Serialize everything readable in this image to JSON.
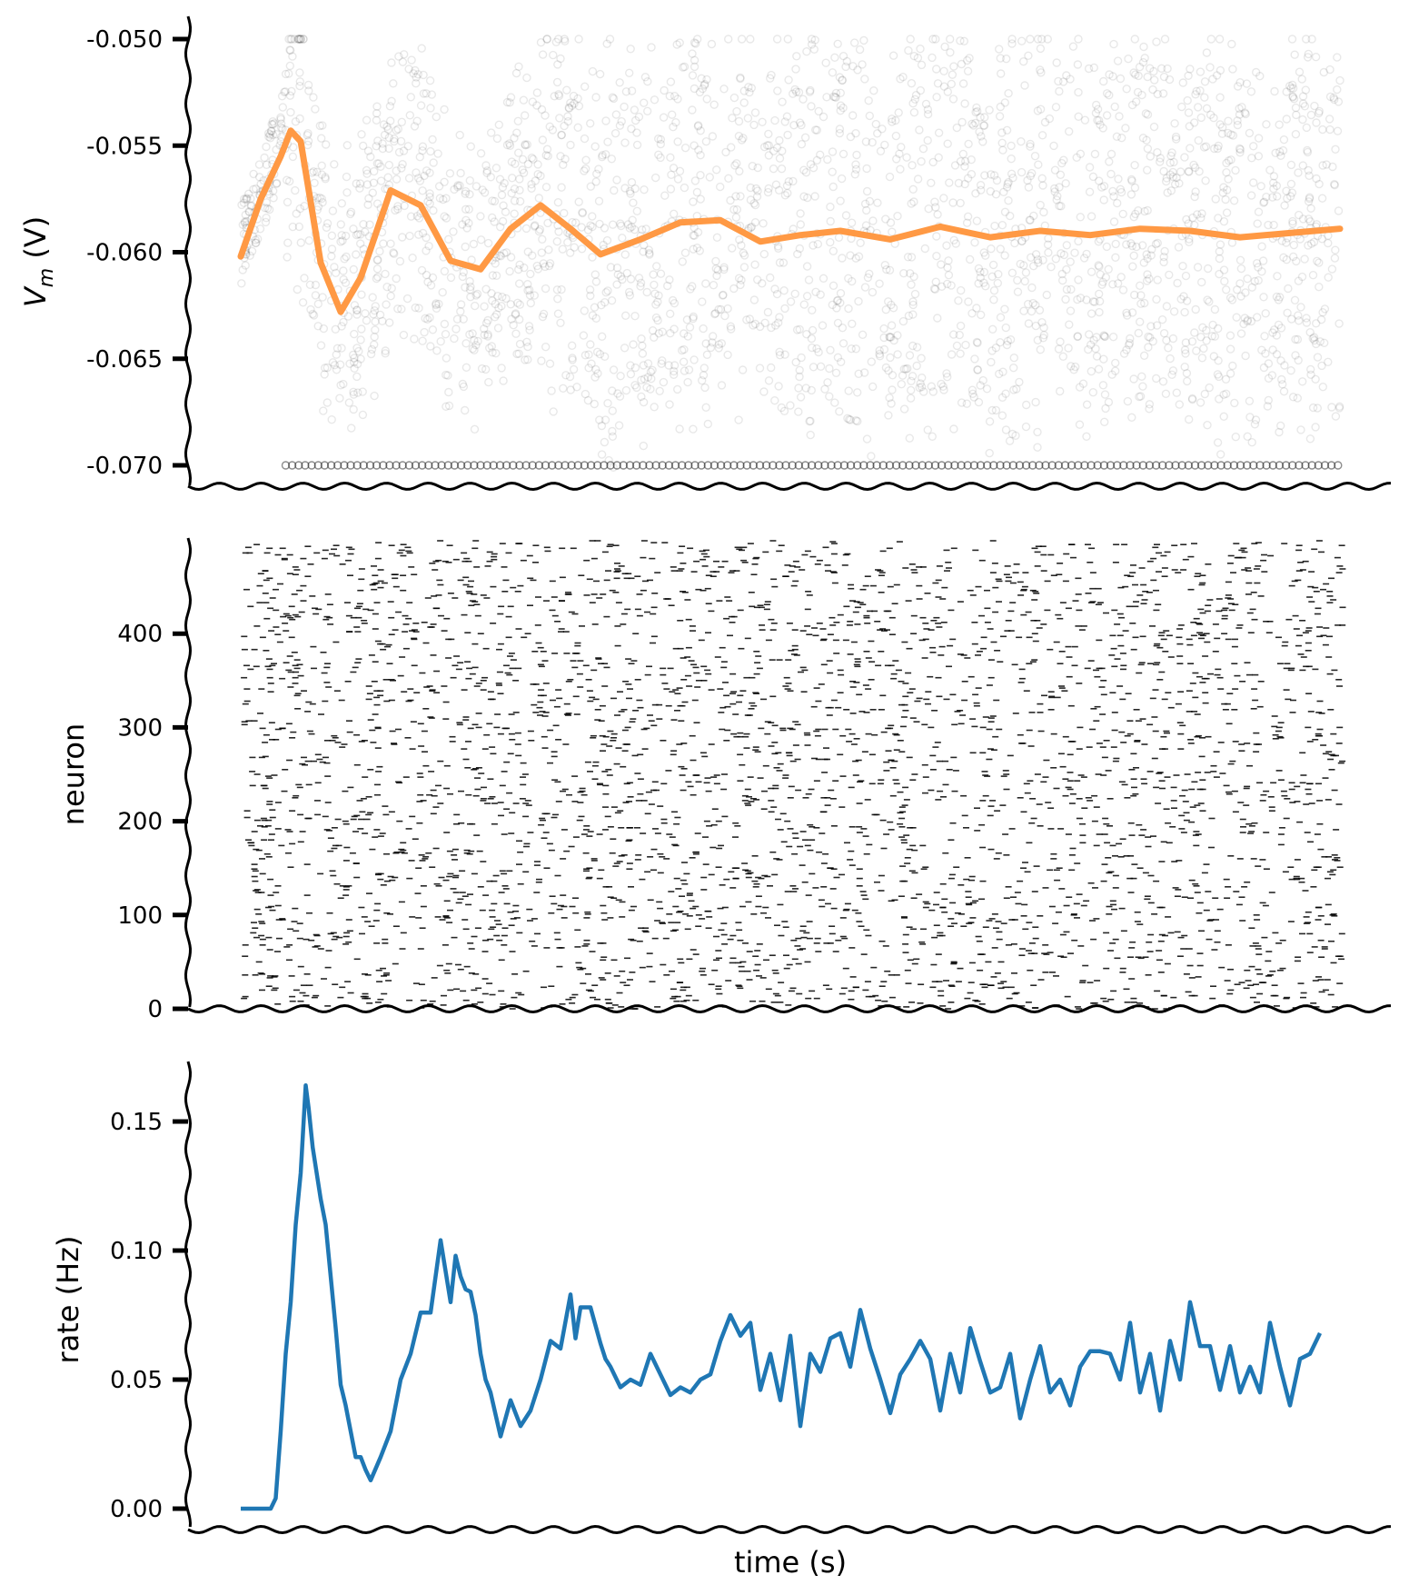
{
  "chart_data": [
    {
      "type": "scatter",
      "ylabel_main": "V",
      "ylabel_sub": "m",
      "ylabel_unit": " (V)",
      "xlabel": "",
      "ylim": [
        -0.0705,
        -0.0495
      ],
      "x_range": [
        0,
        1.1
      ],
      "y_ticks": [
        "-0.050",
        "-0.055",
        "-0.060",
        "-0.065",
        "-0.070"
      ],
      "y_tick_values": [
        -0.05,
        -0.055,
        -0.06,
        -0.065,
        -0.07
      ],
      "series": [
        {
          "color": "#ff9944",
          "x": [
            0.0,
            0.02,
            0.04,
            0.05,
            0.06,
            0.08,
            0.1,
            0.12,
            0.15,
            0.18,
            0.21,
            0.24,
            0.27,
            0.3,
            0.33,
            0.36,
            0.4,
            0.44,
            0.48,
            0.52,
            0.56,
            0.6,
            0.65,
            0.7,
            0.75,
            0.8,
            0.85,
            0.9,
            0.95,
            1.0,
            1.05,
            1.1
          ],
          "y": [
            -0.0602,
            -0.0575,
            -0.0555,
            -0.0543,
            -0.0548,
            -0.0605,
            -0.0628,
            -0.0612,
            -0.0571,
            -0.0578,
            -0.0604,
            -0.0608,
            -0.0589,
            -0.0578,
            -0.0589,
            -0.0601,
            -0.0594,
            -0.0586,
            -0.0585,
            -0.0595,
            -0.0592,
            -0.059,
            -0.0594,
            -0.0588,
            -0.0593,
            -0.059,
            -0.0592,
            -0.0589,
            -0.059,
            -0.0593,
            -0.0591,
            -0.0589
          ]
        }
      ]
    },
    {
      "type": "scatter",
      "ylabel": "neuron",
      "xlabel": "",
      "ylim": [
        0,
        500
      ],
      "x_range": [
        0,
        1.1
      ],
      "y_ticks": [
        "0",
        "100",
        "200",
        "300",
        "400"
      ],
      "y_tick_values": [
        0,
        100,
        200,
        300,
        400
      ],
      "neuron_count": 500
    },
    {
      "type": "line",
      "ylabel": "rate (Hz)",
      "xlabel": "time (s)",
      "ylim": [
        -0.006,
        0.172
      ],
      "x_range": [
        0,
        1.1
      ],
      "y_ticks": [
        "0.00",
        "0.05",
        "0.10",
        "0.15"
      ],
      "y_tick_values": [
        0.0,
        0.05,
        0.1,
        0.15
      ],
      "series": [
        {
          "color": "#1f77b4",
          "x": [
            0.0,
            0.01,
            0.02,
            0.03,
            0.035,
            0.04,
            0.045,
            0.05,
            0.055,
            0.06,
            0.065,
            0.068,
            0.072,
            0.076,
            0.08,
            0.085,
            0.09,
            0.095,
            0.1,
            0.105,
            0.11,
            0.115,
            0.12,
            0.125,
            0.13,
            0.14,
            0.15,
            0.16,
            0.17,
            0.18,
            0.19,
            0.2,
            0.21,
            0.215,
            0.22,
            0.225,
            0.23,
            0.235,
            0.24,
            0.245,
            0.25,
            0.26,
            0.27,
            0.28,
            0.29,
            0.3,
            0.31,
            0.32,
            0.33,
            0.335,
            0.34,
            0.35,
            0.36,
            0.365,
            0.37,
            0.38,
            0.39,
            0.4,
            0.41,
            0.42,
            0.43,
            0.44,
            0.45,
            0.46,
            0.47,
            0.48,
            0.49,
            0.5,
            0.51,
            0.52,
            0.53,
            0.54,
            0.55,
            0.56,
            0.57,
            0.58,
            0.59,
            0.6,
            0.61,
            0.62,
            0.63,
            0.64,
            0.65,
            0.66,
            0.67,
            0.68,
            0.69,
            0.7,
            0.71,
            0.72,
            0.73,
            0.74,
            0.75,
            0.76,
            0.77,
            0.78,
            0.79,
            0.8,
            0.81,
            0.82,
            0.83,
            0.84,
            0.85,
            0.86,
            0.87,
            0.88,
            0.89,
            0.9,
            0.91,
            0.92,
            0.93,
            0.94,
            0.95,
            0.96,
            0.97,
            0.98,
            0.99,
            1.0,
            1.01,
            1.02,
            1.03,
            1.04,
            1.05,
            1.06,
            1.07,
            1.08
          ],
          "y": [
            0.0,
            0.0,
            0.0,
            0.0,
            0.004,
            0.03,
            0.06,
            0.08,
            0.11,
            0.13,
            0.164,
            0.155,
            0.14,
            0.13,
            0.12,
            0.11,
            0.09,
            0.07,
            0.048,
            0.04,
            0.03,
            0.02,
            0.02,
            0.015,
            0.011,
            0.02,
            0.03,
            0.05,
            0.06,
            0.076,
            0.076,
            0.104,
            0.08,
            0.098,
            0.09,
            0.085,
            0.084,
            0.075,
            0.06,
            0.05,
            0.045,
            0.028,
            0.042,
            0.032,
            0.038,
            0.05,
            0.065,
            0.062,
            0.083,
            0.066,
            0.078,
            0.078,
            0.064,
            0.058,
            0.055,
            0.047,
            0.05,
            0.048,
            0.06,
            0.052,
            0.044,
            0.047,
            0.045,
            0.05,
            0.052,
            0.065,
            0.075,
            0.067,
            0.072,
            0.046,
            0.06,
            0.042,
            0.067,
            0.032,
            0.06,
            0.053,
            0.066,
            0.068,
            0.055,
            0.077,
            0.062,
            0.05,
            0.037,
            0.052,
            0.058,
            0.065,
            0.058,
            0.038,
            0.06,
            0.045,
            0.07,
            0.057,
            0.045,
            0.047,
            0.06,
            0.035,
            0.05,
            0.063,
            0.045,
            0.05,
            0.04,
            0.055,
            0.061,
            0.061,
            0.06,
            0.05,
            0.072,
            0.045,
            0.06,
            0.038,
            0.065,
            0.05,
            0.08,
            0.063,
            0.063,
            0.046,
            0.063,
            0.045,
            0.055,
            0.045,
            0.072,
            0.055,
            0.04,
            0.058,
            0.06,
            0.068
          ]
        }
      ]
    }
  ]
}
